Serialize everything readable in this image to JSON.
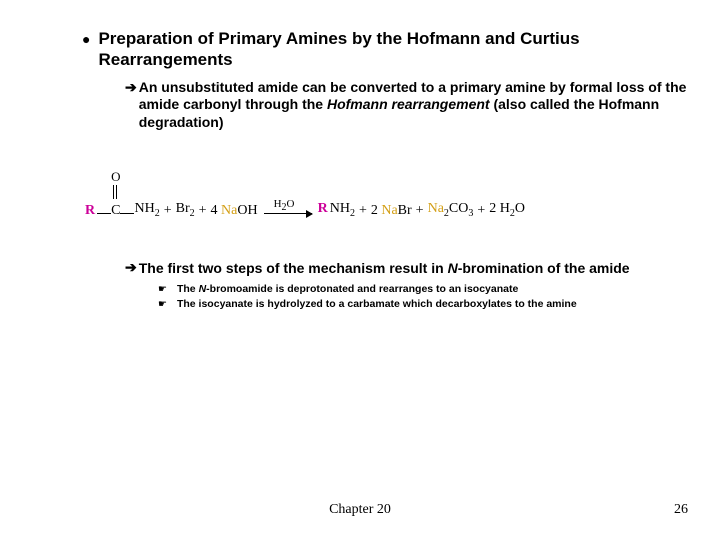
{
  "title": "Preparation of Primary Amines by the Hofmann and Curtius Rearrangements",
  "point1_lead": "An unsubstituted amide can be converted to a primary amine by formal loss of the amide carbonyl through the ",
  "point1_ital": "Hofmann rearrangement",
  "point1_tail": " (also called the Hofmann degradation)",
  "reaction": {
    "o_label": "O",
    "c_label": "C",
    "r_label": "R",
    "nh2": "NH",
    "br2_coef": "Br",
    "naoh_coef": "4 ",
    "na": "Na",
    "oh": "OH",
    "h2o": "H",
    "rnh2_r": "R",
    "nh2_prod": "NH",
    "nabr_coef": "2 ",
    "nabr_tail": "Br",
    "na2co3_na": "Na",
    "co3": "CO",
    "h2o_coef": "2 H",
    "h2o_tail": "O"
  },
  "point2": "The first two steps of the mechanism result in ",
  "point2_ital": "N",
  "point2_tail": "-bromination of the amide",
  "tiny1_lead": "The ",
  "tiny1_ital": "N",
  "tiny1_tail": "-bromoamide is deprotonated and rearranges to an isocyanate",
  "tiny2": "The isocyanate is hydrolyzed to a carbamate which decarboxylates to the amine",
  "chapter": "Chapter 20",
  "page": "26"
}
